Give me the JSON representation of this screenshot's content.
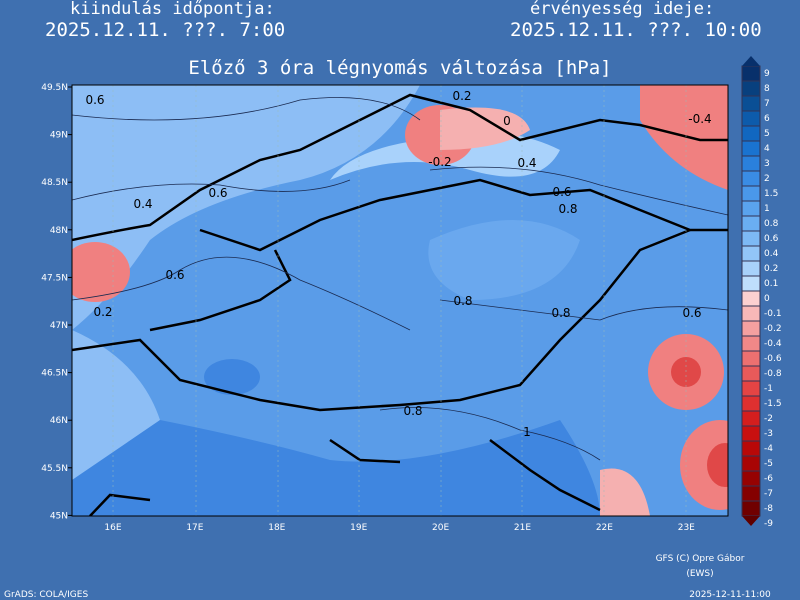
{
  "header": {
    "left_label": "kiindulás időpontja:",
    "left_time": "2025.12.11. ???. 7:00",
    "right_label": "érvényesség ideje:",
    "right_time": "2025.12.11. ???. 10:00",
    "title": "Előző 3 óra légnyomás változása [hPa]"
  },
  "map": {
    "lat_labels": [
      "49.5N",
      "49N",
      "48.5N",
      "48N",
      "47.5N",
      "47N",
      "46.5N",
      "46N",
      "45.5N",
      "45N"
    ],
    "lon_labels": [
      "16E",
      "17E",
      "18E",
      "19E",
      "20E",
      "21E",
      "22E",
      "23E"
    ],
    "contour_labels": [
      "0.6",
      "0.2",
      "0",
      "-0.4",
      "-0.2",
      "0.4",
      "0.6",
      "0.4",
      "0.6",
      "0.8",
      "0.6",
      "0.2",
      "0.8",
      "0.8",
      "0.6",
      "0.8",
      "1"
    ]
  },
  "legend": {
    "labels": [
      "9",
      "8",
      "7",
      "6",
      "5",
      "4",
      "3",
      "2",
      "1.5",
      "1",
      "0.8",
      "0.6",
      "0.4",
      "0.2",
      "0.1",
      "0",
      "-0.1",
      "-0.2",
      "-0.4",
      "-0.6",
      "-0.8",
      "-1",
      "-1.5",
      "-2",
      "-3",
      "-4",
      "-5",
      "-6",
      "-7",
      "-8",
      "-9"
    ]
  },
  "footer": {
    "credit": "GFS (C) Opre Gábor",
    "credit2": "(EWS)",
    "software": "GrADS: COLA/IGES",
    "timestamp": "2025-12-11-11:00"
  }
}
